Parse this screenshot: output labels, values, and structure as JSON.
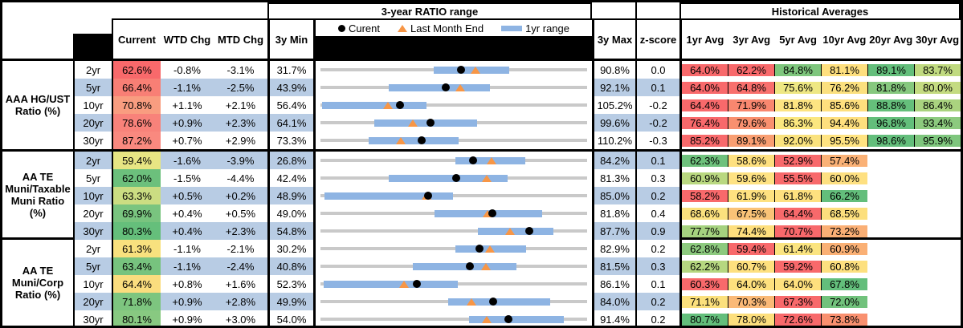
{
  "header": {
    "range_title": "3-year RATIO range",
    "historical_title": "Historical Averages",
    "legend": {
      "current": "Curent",
      "last_month_end": "Last Month End",
      "range_1yr": "1yr range"
    },
    "columns": {
      "current": "Current",
      "wtd": "WTD Chg",
      "mtd": "MTD Chg",
      "min": "3y Min",
      "max": "3y Max",
      "z": "z-score"
    },
    "avg_columns": [
      "1yr Avg",
      "3yr Avg",
      "5yr Avg",
      "10yr Avg",
      "20yr Avg",
      "30yr Avg"
    ]
  },
  "colors": {
    "stripe": "#b8cce4",
    "bar_1yr": "#8eb4e3",
    "track": "#c9c9c9",
    "marker_triangle": "#f79646",
    "marker_dot": "#000000",
    "scale_red": "#f8696b",
    "scale_yellow": "#fedf7e",
    "scale_green": "#63be7b"
  },
  "chart_data": {
    "type": "table",
    "note": "Each row is a bullet chart: gray track spans 3y Min to 3y Max, blue bar = 1yr range, black dot = Current, orange triangle = Last Month End (current minus MTD chg). Values in percent.",
    "groups": [
      {
        "label": "AAA HG/UST Ratio (%)",
        "rows": [
          {
            "tenor": "2yr",
            "current": "62.6%",
            "current_bg": "#f8696b",
            "wtd": "-0.8%",
            "mtd": "-3.1%",
            "min": "31.7%",
            "max": "90.8%",
            "z": "0.0",
            "last_month_end": 65.7,
            "bar_1yr": [
              56.5,
              73.2
            ],
            "avgs": [
              {
                "v": "64.0%",
                "bg": "#f8696b"
              },
              {
                "v": "62.2%",
                "bg": "#f8696b"
              },
              {
                "v": "84.8%",
                "bg": "#7ec67d"
              },
              {
                "v": "81.1%",
                "bg": "#fedf7e"
              },
              {
                "v": "89.1%",
                "bg": "#63be7b"
              },
              {
                "v": "83.7%",
                "bg": "#c0da80"
              }
            ]
          },
          {
            "tenor": "5yr",
            "current": "66.4%",
            "current_bg": "#f87f75",
            "wtd": "-1.1%",
            "mtd": "-2.5%",
            "min": "43.9%",
            "max": "92.1%",
            "z": "0.1",
            "last_month_end": 68.9,
            "bar_1yr": [
              56.1,
              74.2
            ],
            "avgs": [
              {
                "v": "64.0%",
                "bg": "#f8696b"
              },
              {
                "v": "64.8%",
                "bg": "#f8706d"
              },
              {
                "v": "75.6%",
                "bg": "#eee783"
              },
              {
                "v": "76.2%",
                "bg": "#fbe07e"
              },
              {
                "v": "81.8%",
                "bg": "#86c87e"
              },
              {
                "v": "80.0%",
                "bg": "#c4db81"
              }
            ]
          },
          {
            "tenor": "10yr",
            "current": "70.8%",
            "current_bg": "#f99d80",
            "wtd": "+1.1%",
            "mtd": "+2.1%",
            "min": "56.4%",
            "max": "105.2%",
            "z": "-0.2",
            "last_month_end": 68.7,
            "bar_1yr": [
              56.7,
              75.7
            ],
            "avgs": [
              {
                "v": "64.4%",
                "bg": "#f8696b"
              },
              {
                "v": "71.9%",
                "bg": "#f9876f"
              },
              {
                "v": "81.8%",
                "bg": "#fde482"
              },
              {
                "v": "85.6%",
                "bg": "#fedf7e"
              },
              {
                "v": "88.8%",
                "bg": "#65bf7b"
              },
              {
                "v": "86.4%",
                "bg": "#aad37f"
              }
            ]
          },
          {
            "tenor": "20yr",
            "current": "78.6%",
            "current_bg": "#f8827a",
            "wtd": "+0.9%",
            "mtd": "+2.3%",
            "min": "64.1%",
            "max": "99.6%",
            "z": "-0.2",
            "last_month_end": 76.3,
            "bar_1yr": [
              71.2,
              84.8
            ],
            "avgs": [
              {
                "v": "76.4%",
                "bg": "#f8696b"
              },
              {
                "v": "79.6%",
                "bg": "#f9906f"
              },
              {
                "v": "86.3%",
                "bg": "#fbe77f"
              },
              {
                "v": "94.4%",
                "bg": "#fedf7e"
              },
              {
                "v": "96.8%",
                "bg": "#63be7b"
              },
              {
                "v": "93.4%",
                "bg": "#8cca7e"
              }
            ]
          },
          {
            "tenor": "30yr",
            "current": "87.2%",
            "current_bg": "#f9897f",
            "wtd": "+0.7%",
            "mtd": "+2.9%",
            "min": "73.3%",
            "max": "110.2%",
            "z": "-0.3",
            "last_month_end": 84.3,
            "bar_1yr": [
              79.9,
              92.3
            ],
            "avgs": [
              {
                "v": "85.2%",
                "bg": "#f8696b"
              },
              {
                "v": "89.1%",
                "bg": "#f99e71"
              },
              {
                "v": "92.0%",
                "bg": "#fae27d"
              },
              {
                "v": "95.5%",
                "bg": "#ffe381"
              },
              {
                "v": "98.6%",
                "bg": "#63be7b"
              },
              {
                "v": "95.9%",
                "bg": "#7ec67d"
              }
            ]
          }
        ]
      },
      {
        "label": "AA TE Muni/Taxable Muni Ratio (%)",
        "rows": [
          {
            "tenor": "2yr",
            "current": "59.4%",
            "current_bg": "#e7e583",
            "wtd": "-1.6%",
            "mtd": "-3.9%",
            "min": "26.8%",
            "max": "84.2%",
            "z": "0.1",
            "last_month_end": 63.3,
            "bar_1yr": [
              55.5,
              70.4
            ],
            "avgs": [
              {
                "v": "62.3%",
                "bg": "#6ec17c"
              },
              {
                "v": "58.6%",
                "bg": "#fee07f"
              },
              {
                "v": "52.9%",
                "bg": "#f8696b"
              },
              {
                "v": "57.4%",
                "bg": "#fab176"
              },
              null,
              null
            ]
          },
          {
            "tenor": "5yr",
            "current": "62.0%",
            "current_bg": "#6cc07c",
            "wtd": "-1.5%",
            "mtd": "-4.4%",
            "min": "42.4%",
            "max": "81.3%",
            "z": "0.3",
            "last_month_end": 66.4,
            "bar_1yr": [
              52.3,
              69.4
            ],
            "avgs": [
              {
                "v": "60.9%",
                "bg": "#b9d880"
              },
              {
                "v": "59.6%",
                "bg": "#fee283"
              },
              {
                "v": "55.5%",
                "bg": "#f8696b"
              },
              {
                "v": "60.0%",
                "bg": "#fee081"
              },
              null,
              null
            ]
          },
          {
            "tenor": "10yr",
            "current": "63.3%",
            "current_bg": "#cbdd82",
            "wtd": "+0.5%",
            "mtd": "+0.2%",
            "min": "48.9%",
            "max": "85.0%",
            "z": "0.2",
            "last_month_end": 63.1,
            "bar_1yr": [
              49.4,
              66.7
            ],
            "avgs": [
              {
                "v": "58.2%",
                "bg": "#f8696b"
              },
              {
                "v": "61.9%",
                "bg": "#fee180"
              },
              {
                "v": "61.8%",
                "bg": "#fee07f"
              },
              {
                "v": "66.2%",
                "bg": "#63be7b"
              },
              null,
              null
            ]
          },
          {
            "tenor": "20yr",
            "current": "69.9%",
            "current_bg": "#79c47f",
            "wtd": "+0.4%",
            "mtd": "+0.5%",
            "min": "49.0%",
            "max": "81.8%",
            "z": "0.4",
            "last_month_end": 69.4,
            "bar_1yr": [
              62.9,
              76.0
            ],
            "avgs": [
              {
                "v": "68.6%",
                "bg": "#fbe17e"
              },
              {
                "v": "67.5%",
                "bg": "#fac377"
              },
              {
                "v": "64.4%",
                "bg": "#f8696b"
              },
              {
                "v": "68.5%",
                "bg": "#fcdf7d"
              },
              null,
              null
            ]
          },
          {
            "tenor": "30yr",
            "current": "80.3%",
            "current_bg": "#65bf7b",
            "wtd": "+0.4%",
            "mtd": "+2.3%",
            "min": "54.8%",
            "max": "87.7%",
            "z": "0.9",
            "last_month_end": 78.0,
            "bar_1yr": [
              74.0,
              83.3
            ],
            "avgs": [
              {
                "v": "77.7%",
                "bg": "#a5d27f"
              },
              {
                "v": "74.4%",
                "bg": "#fedf7e"
              },
              {
                "v": "70.7%",
                "bg": "#f8696b"
              },
              {
                "v": "73.2%",
                "bg": "#faaf75"
              },
              null,
              null
            ]
          }
        ]
      },
      {
        "label": "AA TE Muni/Corp Ratio (%)",
        "rows": [
          {
            "tenor": "2yr",
            "current": "61.3%",
            "current_bg": "#f8e17e",
            "wtd": "-1.1%",
            "mtd": "-2.1%",
            "min": "30.2%",
            "max": "82.9%",
            "z": "0.2",
            "last_month_end": 63.4,
            "bar_1yr": [
              56.6,
              70.5
            ],
            "avgs": [
              {
                "v": "62.8%",
                "bg": "#8cc97e"
              },
              {
                "v": "59.4%",
                "bg": "#f8696b"
              },
              {
                "v": "61.4%",
                "bg": "#fbe480"
              },
              {
                "v": "60.9%",
                "bg": "#fab075"
              },
              null,
              null
            ]
          },
          {
            "tenor": "5yr",
            "current": "63.4%",
            "current_bg": "#77c37e",
            "wtd": "-1.1%",
            "mtd": "-2.4%",
            "min": "40.8%",
            "max": "81.5%",
            "z": "0.3",
            "last_month_end": 65.8,
            "bar_1yr": [
              54.8,
              70.5
            ],
            "avgs": [
              {
                "v": "62.2%",
                "bg": "#b6d780"
              },
              {
                "v": "60.7%",
                "bg": "#fee07e"
              },
              {
                "v": "59.2%",
                "bg": "#f8696b"
              },
              {
                "v": "60.8%",
                "bg": "#fde07f"
              },
              null,
              null
            ]
          },
          {
            "tenor": "10yr",
            "current": "64.4%",
            "current_bg": "#fadd7e",
            "wtd": "+0.8%",
            "mtd": "+1.6%",
            "min": "52.3%",
            "max": "86.1%",
            "z": "0.1",
            "last_month_end": 62.8,
            "bar_1yr": [
              52.7,
              69.5
            ],
            "avgs": [
              {
                "v": "60.3%",
                "bg": "#f8696b"
              },
              {
                "v": "64.0%",
                "bg": "#fee07e"
              },
              {
                "v": "64.0%",
                "bg": "#fee07e"
              },
              {
                "v": "67.8%",
                "bg": "#63be7b"
              },
              null,
              null
            ]
          },
          {
            "tenor": "20yr",
            "current": "71.8%",
            "current_bg": "#7dc57f",
            "wtd": "+0.9%",
            "mtd": "+2.8%",
            "min": "49.9%",
            "max": "84.0%",
            "z": "0.2",
            "last_month_end": 69.0,
            "bar_1yr": [
              66.1,
              79.0
            ],
            "avgs": [
              {
                "v": "71.1%",
                "bg": "#fbe07d"
              },
              {
                "v": "70.3%",
                "bg": "#fab977"
              },
              {
                "v": "67.3%",
                "bg": "#f8696b"
              },
              {
                "v": "72.0%",
                "bg": "#71c27c"
              },
              null,
              null
            ]
          },
          {
            "tenor": "30yr",
            "current": "80.1%",
            "current_bg": "#88c981",
            "wtd": "+0.9%",
            "mtd": "+3.0%",
            "min": "54.0%",
            "max": "91.4%",
            "z": "0.2",
            "last_month_end": 77.1,
            "bar_1yr": [
              74.6,
              87.8
            ],
            "avgs": [
              {
                "v": "80.7%",
                "bg": "#63be7b"
              },
              {
                "v": "78.0%",
                "bg": "#fddf7d"
              },
              {
                "v": "72.6%",
                "bg": "#f8696b"
              },
              {
                "v": "73.8%",
                "bg": "#f9906f"
              },
              null,
              null
            ]
          }
        ]
      }
    ]
  }
}
